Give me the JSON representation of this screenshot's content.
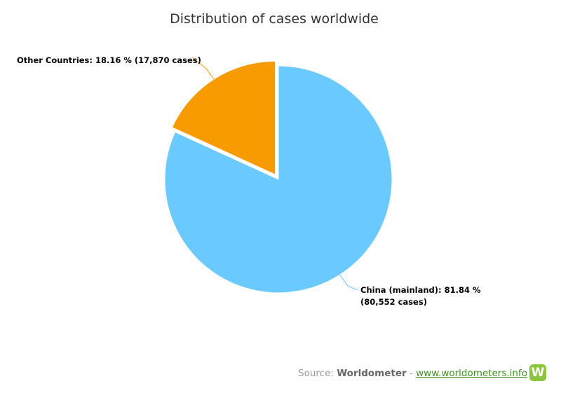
{
  "chart_data": {
    "type": "pie",
    "title": "Distribution of cases worldwide",
    "slices": [
      {
        "label": "China (mainland)",
        "percent": 81.84,
        "cases": 80552,
        "color": "#6ac9fd",
        "label_lines": [
          "China (mainland): 81.84 %",
          "(80,552 cases)"
        ]
      },
      {
        "label": "Other Countries",
        "percent": 18.16,
        "cases": 17870,
        "color": "#f89b00",
        "label_lines": [
          "Other Countries: 18.16 % (17,870 cases)"
        ]
      }
    ],
    "legend": "none"
  },
  "source": {
    "prefix": "Source: ",
    "brand": "Worldometer",
    "separator": " - ",
    "link": "www.worldometers.info",
    "logo_letter": "W"
  }
}
